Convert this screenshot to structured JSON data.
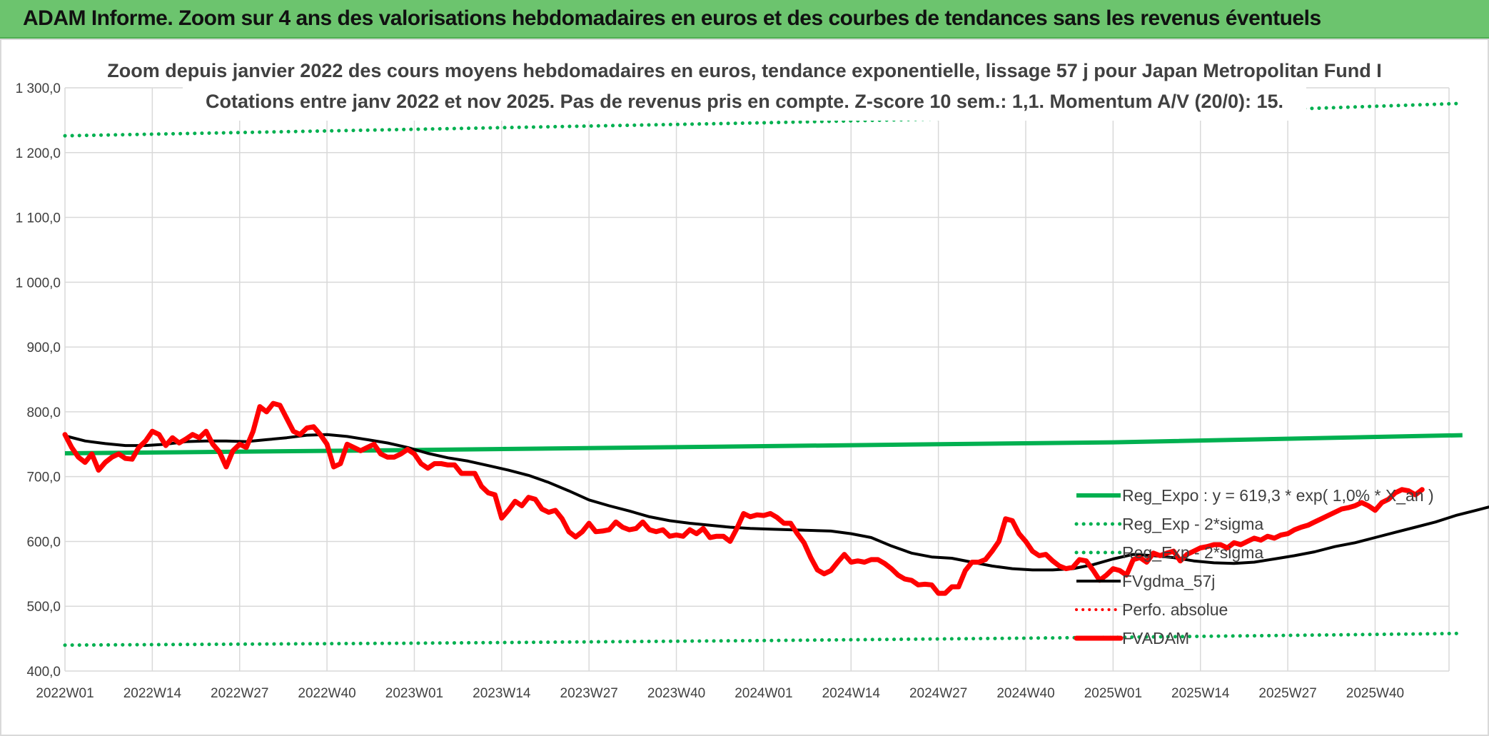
{
  "header": {
    "banner_title": "ADAM Informe. Zoom sur 4 ans des valorisations hebdomadaires en euros et des courbes de tendances sans les revenus éventuels"
  },
  "colors": {
    "banner": "#6cc46e",
    "reg": "#00b050",
    "fvgdma": "#000000",
    "fvadam": "#ff0000",
    "grid": "#d9d9d9"
  },
  "chart_data": {
    "type": "line",
    "title": "Zoom depuis janvier 2022 des cours moyens hebdomadaires en euros, tendance exponentielle, lissage 57 j pour Japan Metropolitan Fund I",
    "subtitle": "Cotations entre janv 2022 et nov 2025. Pas de revenus pris en compte. Z-score 10 sem.: 1,1. Momentum A/V (20/0): 15.",
    "ylim": [
      400,
      1300
    ],
    "y_ticks": [
      "400,0",
      "500,0",
      "600,0",
      "700,0",
      "800,0",
      "900,0",
      "1 000,0",
      "1 100,0",
      "1 200,0",
      "1 300,0"
    ],
    "x_tick_labels": [
      "2022W01",
      "2022W14",
      "2022W27",
      "2022W40",
      "2023W01",
      "2023W14",
      "2023W27",
      "2023W40",
      "2024W01",
      "2024W14",
      "2024W27",
      "2024W40",
      "2025W01",
      "2025W14",
      "2025W27",
      "2025W40"
    ],
    "x_range_weeks": [
      0,
      206
    ],
    "grid": true,
    "legend_position": "right",
    "series": [
      {
        "name": "Reg_Expo : y = 619,3 * exp( 1,0% * X_an )",
        "style": "solid-green-thick",
        "points": [
          [
            0,
            736
          ],
          [
            52,
            741
          ],
          [
            104,
            747
          ],
          [
            156,
            753
          ],
          [
            208,
            764
          ]
        ]
      },
      {
        "name": "Reg_Exp - 2*sigma",
        "style": "dotted-green",
        "points": [
          [
            0,
            1226
          ],
          [
            52,
            1236
          ],
          [
            104,
            1246
          ],
          [
            156,
            1258
          ],
          [
            208,
            1276
          ]
        ]
      },
      {
        "name": "Reg_Exp - 2*sigma",
        "style": "dotted-green",
        "points": [
          [
            0,
            440
          ],
          [
            52,
            443
          ],
          [
            104,
            447
          ],
          [
            156,
            452
          ],
          [
            208,
            458
          ]
        ]
      },
      {
        "name": "FVgdma_57j",
        "style": "solid-black",
        "points": [
          [
            0,
            763
          ],
          [
            3,
            755
          ],
          [
            6,
            751
          ],
          [
            9,
            748
          ],
          [
            12,
            748
          ],
          [
            15,
            750
          ],
          [
            18,
            754
          ],
          [
            21,
            755
          ],
          [
            24,
            755
          ],
          [
            27,
            754
          ],
          [
            30,
            757
          ],
          [
            33,
            760
          ],
          [
            36,
            764
          ],
          [
            39,
            765
          ],
          [
            42,
            762
          ],
          [
            45,
            757
          ],
          [
            48,
            752
          ],
          [
            51,
            745
          ],
          [
            54,
            736
          ],
          [
            57,
            729
          ],
          [
            60,
            724
          ],
          [
            63,
            717
          ],
          [
            66,
            710
          ],
          [
            69,
            702
          ],
          [
            72,
            691
          ],
          [
            75,
            678
          ],
          [
            78,
            664
          ],
          [
            81,
            655
          ],
          [
            84,
            647
          ],
          [
            87,
            638
          ],
          [
            90,
            632
          ],
          [
            93,
            628
          ],
          [
            96,
            625
          ],
          [
            99,
            622
          ],
          [
            102,
            620
          ],
          [
            105,
            619
          ],
          [
            108,
            618
          ],
          [
            111,
            617
          ],
          [
            114,
            616
          ],
          [
            117,
            612
          ],
          [
            120,
            606
          ],
          [
            123,
            593
          ],
          [
            126,
            582
          ],
          [
            129,
            576
          ],
          [
            132,
            574
          ],
          [
            135,
            568
          ],
          [
            138,
            562
          ],
          [
            141,
            558
          ],
          [
            144,
            556
          ],
          [
            147,
            556
          ],
          [
            150,
            558
          ],
          [
            153,
            564
          ],
          [
            156,
            573
          ],
          [
            159,
            580
          ],
          [
            162,
            578
          ],
          [
            165,
            575
          ],
          [
            168,
            570
          ],
          [
            171,
            567
          ],
          [
            174,
            566
          ],
          [
            177,
            568
          ],
          [
            180,
            573
          ],
          [
            183,
            578
          ],
          [
            186,
            584
          ],
          [
            189,
            592
          ],
          [
            192,
            598
          ],
          [
            195,
            606
          ],
          [
            198,
            614
          ],
          [
            201,
            622
          ],
          [
            204,
            630
          ],
          [
            207,
            640
          ],
          [
            210,
            648
          ],
          [
            213,
            656
          ],
          [
            216,
            664
          ],
          [
            219,
            669
          ]
        ]
      },
      {
        "name": "Perfo. absolue",
        "style": "dotted-red",
        "points": []
      },
      {
        "name": "FVADAM",
        "style": "solid-red-thick",
        "points": [
          [
            0,
            765
          ],
          [
            1,
            745
          ],
          [
            2,
            730
          ],
          [
            3,
            722
          ],
          [
            4,
            735
          ],
          [
            5,
            710
          ],
          [
            6,
            722
          ],
          [
            7,
            730
          ],
          [
            8,
            735
          ],
          [
            9,
            728
          ],
          [
            10,
            727
          ],
          [
            11,
            745
          ],
          [
            12,
            755
          ],
          [
            13,
            770
          ],
          [
            14,
            765
          ],
          [
            15,
            748
          ],
          [
            16,
            760
          ],
          [
            17,
            752
          ],
          [
            18,
            758
          ],
          [
            19,
            765
          ],
          [
            20,
            760
          ],
          [
            21,
            770
          ],
          [
            22,
            750
          ],
          [
            23,
            738
          ],
          [
            24,
            715
          ],
          [
            25,
            740
          ],
          [
            26,
            750
          ],
          [
            27,
            745
          ],
          [
            28,
            770
          ],
          [
            29,
            808
          ],
          [
            30,
            800
          ],
          [
            31,
            813
          ],
          [
            32,
            810
          ],
          [
            33,
            790
          ],
          [
            34,
            770
          ],
          [
            35,
            765
          ],
          [
            36,
            775
          ],
          [
            37,
            777
          ],
          [
            38,
            765
          ],
          [
            39,
            750
          ],
          [
            40,
            715
          ],
          [
            41,
            720
          ],
          [
            42,
            750
          ],
          [
            43,
            745
          ],
          [
            44,
            740
          ],
          [
            45,
            745
          ],
          [
            46,
            750
          ],
          [
            47,
            735
          ],
          [
            48,
            730
          ],
          [
            49,
            730
          ],
          [
            50,
            735
          ],
          [
            51,
            742
          ],
          [
            52,
            735
          ],
          [
            53,
            720
          ],
          [
            54,
            713
          ],
          [
            55,
            720
          ],
          [
            56,
            720
          ],
          [
            57,
            718
          ],
          [
            58,
            718
          ],
          [
            59,
            705
          ],
          [
            60,
            705
          ],
          [
            61,
            705
          ],
          [
            62,
            685
          ],
          [
            63,
            675
          ],
          [
            64,
            672
          ],
          [
            65,
            636
          ],
          [
            66,
            648
          ],
          [
            67,
            662
          ],
          [
            68,
            655
          ],
          [
            69,
            668
          ],
          [
            70,
            665
          ],
          [
            71,
            650
          ],
          [
            72,
            645
          ],
          [
            73,
            648
          ],
          [
            74,
            635
          ],
          [
            75,
            615
          ],
          [
            76,
            607
          ],
          [
            77,
            615
          ],
          [
            78,
            628
          ],
          [
            79,
            615
          ],
          [
            80,
            616
          ],
          [
            81,
            618
          ],
          [
            82,
            630
          ],
          [
            83,
            622
          ],
          [
            84,
            618
          ],
          [
            85,
            620
          ],
          [
            86,
            630
          ],
          [
            87,
            618
          ],
          [
            88,
            615
          ],
          [
            89,
            618
          ],
          [
            90,
            608
          ],
          [
            91,
            610
          ],
          [
            92,
            608
          ],
          [
            93,
            618
          ],
          [
            94,
            612
          ],
          [
            95,
            620
          ],
          [
            96,
            606
          ],
          [
            97,
            608
          ],
          [
            98,
            608
          ],
          [
            99,
            600
          ],
          [
            100,
            620
          ],
          [
            101,
            643
          ],
          [
            102,
            638
          ],
          [
            103,
            641
          ],
          [
            104,
            640
          ],
          [
            105,
            643
          ],
          [
            106,
            637
          ],
          [
            107,
            628
          ],
          [
            108,
            628
          ],
          [
            109,
            612
          ],
          [
            110,
            598
          ],
          [
            111,
            575
          ],
          [
            112,
            556
          ],
          [
            113,
            550
          ],
          [
            114,
            555
          ],
          [
            115,
            568
          ],
          [
            116,
            580
          ],
          [
            117,
            568
          ],
          [
            118,
            570
          ],
          [
            119,
            568
          ],
          [
            120,
            572
          ],
          [
            121,
            572
          ],
          [
            122,
            566
          ],
          [
            123,
            558
          ],
          [
            124,
            548
          ],
          [
            125,
            542
          ],
          [
            126,
            540
          ],
          [
            127,
            533
          ],
          [
            128,
            534
          ],
          [
            129,
            533
          ],
          [
            130,
            520
          ],
          [
            131,
            520
          ],
          [
            132,
            530
          ],
          [
            133,
            530
          ],
          [
            134,
            555
          ],
          [
            135,
            568
          ],
          [
            136,
            568
          ],
          [
            137,
            572
          ],
          [
            138,
            585
          ],
          [
            139,
            600
          ],
          [
            140,
            635
          ],
          [
            141,
            632
          ],
          [
            142,
            612
          ],
          [
            143,
            600
          ],
          [
            144,
            585
          ],
          [
            145,
            578
          ],
          [
            146,
            580
          ],
          [
            147,
            570
          ],
          [
            148,
            562
          ],
          [
            149,
            558
          ],
          [
            150,
            560
          ],
          [
            151,
            572
          ],
          [
            152,
            570
          ],
          [
            153,
            556
          ],
          [
            154,
            540
          ],
          [
            155,
            548
          ],
          [
            156,
            558
          ],
          [
            157,
            555
          ],
          [
            158,
            548
          ],
          [
            159,
            572
          ],
          [
            160,
            575
          ],
          [
            161,
            568
          ],
          [
            162,
            582
          ],
          [
            163,
            578
          ],
          [
            164,
            582
          ],
          [
            165,
            585
          ],
          [
            166,
            570
          ],
          [
            167,
            580
          ],
          [
            168,
            585
          ],
          [
            169,
            590
          ],
          [
            170,
            592
          ],
          [
            171,
            595
          ],
          [
            172,
            595
          ],
          [
            173,
            590
          ],
          [
            174,
            598
          ],
          [
            175,
            595
          ],
          [
            176,
            600
          ],
          [
            177,
            605
          ],
          [
            178,
            602
          ],
          [
            179,
            608
          ],
          [
            180,
            605
          ],
          [
            181,
            610
          ],
          [
            182,
            612
          ],
          [
            183,
            618
          ],
          [
            184,
            622
          ],
          [
            185,
            625
          ],
          [
            186,
            630
          ],
          [
            187,
            635
          ],
          [
            188,
            640
          ],
          [
            189,
            645
          ],
          [
            190,
            650
          ],
          [
            191,
            652
          ],
          [
            192,
            655
          ],
          [
            193,
            660
          ],
          [
            194,
            655
          ],
          [
            195,
            648
          ],
          [
            196,
            660
          ],
          [
            197,
            665
          ],
          [
            198,
            675
          ],
          [
            199,
            680
          ],
          [
            200,
            678
          ],
          [
            201,
            672
          ],
          [
            202,
            680
          ]
        ]
      }
    ]
  }
}
